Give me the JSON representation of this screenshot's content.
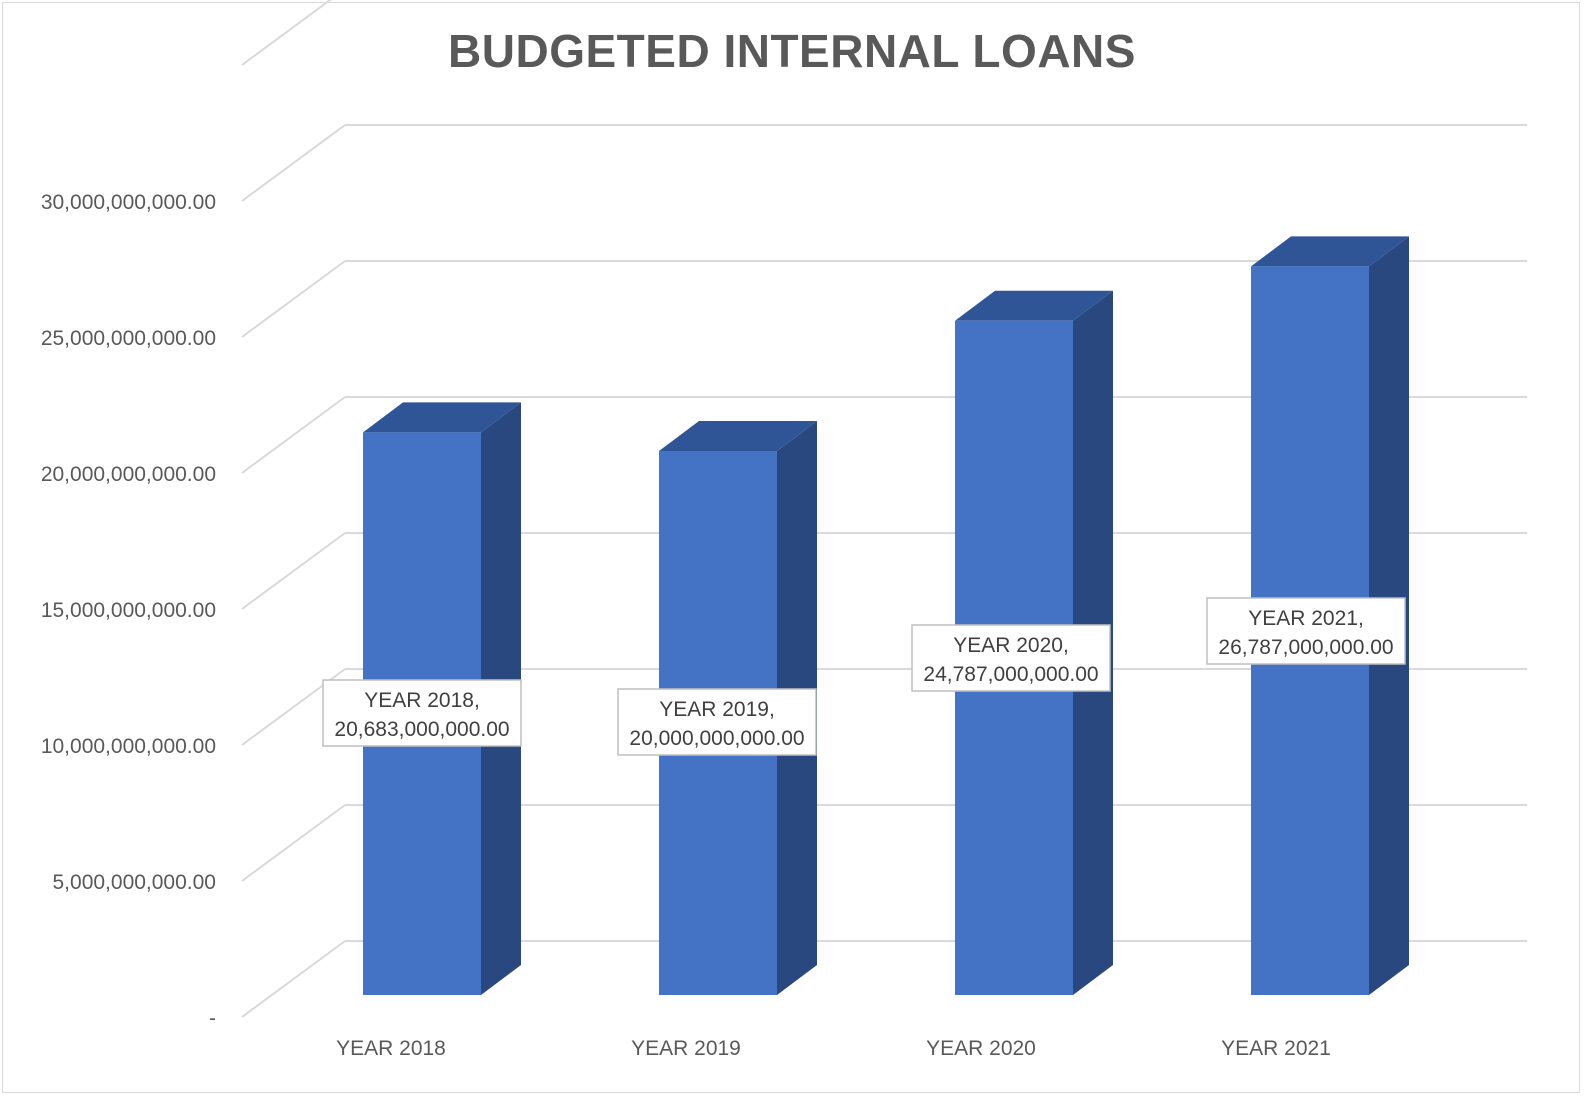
{
  "chart_data": {
    "type": "bar",
    "title": "BUDGETED INTERNAL LOANS",
    "categories": [
      "YEAR 2018",
      "YEAR 2019",
      "YEAR 2020",
      "YEAR 2021"
    ],
    "values": [
      20683000000,
      20000000000,
      24787000000,
      26787000000
    ],
    "data_labels": [
      [
        "YEAR 2018,",
        "20,683,000,000.00"
      ],
      [
        "YEAR 2019,",
        "20,000,000,000.00"
      ],
      [
        "YEAR 2020,",
        "24,787,000,000.00"
      ],
      [
        "YEAR 2021,",
        "26,787,000,000.00"
      ]
    ],
    "y_ticks": [
      0,
      5000000000,
      10000000000,
      15000000000,
      20000000000,
      25000000000,
      30000000000
    ],
    "y_tick_labels": [
      "-",
      "5,000,000,000.00",
      "10,000,000,000.00",
      "15,000,000,000.00",
      "20,000,000,000.00",
      "25,000,000,000.00",
      "30,000,000,000.00"
    ],
    "ylim": [
      0,
      30000000000
    ],
    "grid": true,
    "style": "3d-column",
    "colors": {
      "bar_front": "#4472c4",
      "bar_side": "#2a4880",
      "bar_top": "#2f5597",
      "grid": "#d9d9d9"
    }
  }
}
